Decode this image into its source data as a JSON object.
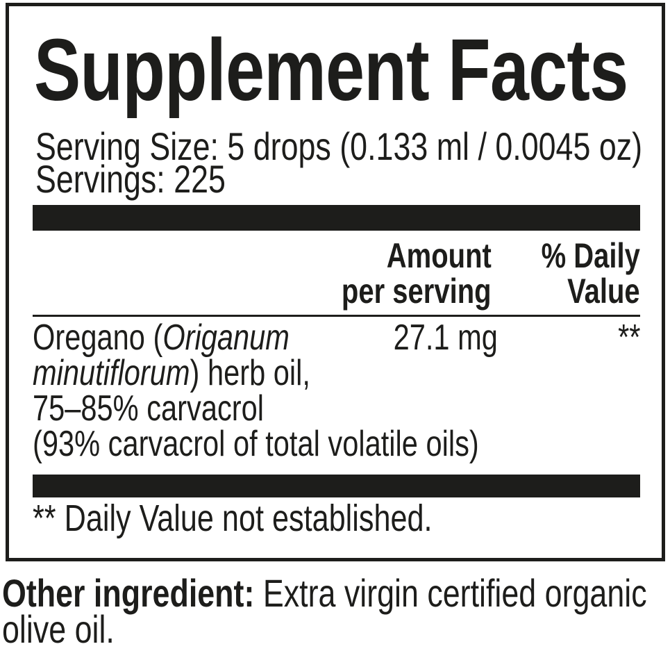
{
  "colors": {
    "ink": "#1d1d1b",
    "background": "#ffffff"
  },
  "label": {
    "title": "Supplement Facts",
    "serving_size": "Serving Size: 5 drops (0.133 ml / 0.0045 oz)",
    "servings": "Servings: 225",
    "columns": {
      "amount_line1": "Amount",
      "amount_line2": "per serving",
      "dv_line1": "% Daily",
      "dv_line2": "Value"
    },
    "ingredient": {
      "line1_pre": "Oregano (",
      "line1_italic": "Origanum",
      "line2_italic": "minutiflorum",
      "line2_post": ") herb oil,",
      "line3": "75–85% carvacrol",
      "line4": "(93% carvacrol of total volatile oils)",
      "amount": "27.1 mg",
      "daily_value": "**"
    },
    "footnote": "** Daily Value not established."
  },
  "other_ingredient": {
    "label": "Other ingredient:",
    "text": " Extra virgin certified organic olive oil."
  }
}
